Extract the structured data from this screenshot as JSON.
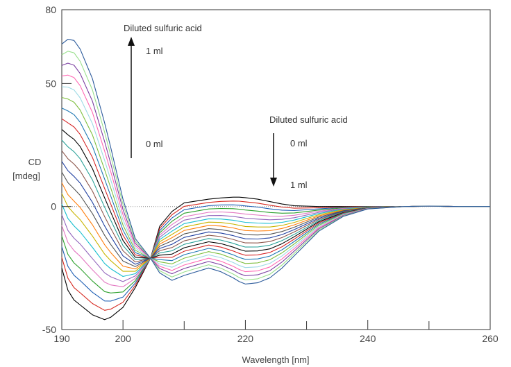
{
  "chart_data": {
    "type": "line",
    "xlabel": "Wavelength [nm]",
    "ylabel": [
      "CD",
      "[mdeg]"
    ],
    "xlim": [
      190,
      260
    ],
    "ylim": [
      -50,
      80
    ],
    "x_ticks": [
      190,
      200,
      220,
      240,
      260
    ],
    "y_ticks": [
      -50,
      0,
      50,
      80
    ],
    "zero_line": "dotted",
    "grid": false,
    "legend": "none",
    "series_count": 22,
    "series_colors": [
      "#000000",
      "#d6281f",
      "#1f5fb4",
      "#2ca02c",
      "#e377c2",
      "#9467bd",
      "#17becf",
      "#c8b400",
      "#ff7f0e",
      "#555555",
      "#1f3fa0",
      "#8c564b",
      "#2aa198",
      "#000000",
      "#d62728",
      "#1f77b4",
      "#7fbf3f",
      "#9edae5",
      "#ff69b4",
      "#7b3fa0",
      "#98df8a",
      "#2b5a9b"
    ],
    "endpoints": {
      "top_curve": {
        "x": [
          190,
          191,
          192,
          193,
          195,
          197,
          198,
          200,
          202,
          204.5,
          206,
          208,
          210,
          214,
          216,
          218,
          219,
          220,
          222,
          224,
          226,
          228,
          232,
          236,
          240,
          246,
          250,
          255,
          260
        ],
        "y": [
          66,
          68,
          67.5,
          64,
          52,
          34,
          24,
          3,
          -13,
          -21,
          -27,
          -30,
          -28,
          -25,
          -26.5,
          -29,
          -30.5,
          -31.5,
          -31,
          -29,
          -25,
          -20,
          -10,
          -4,
          -1,
          0,
          0.2,
          0,
          0
        ]
      },
      "bottom_curve": {
        "x": [
          190,
          191,
          192,
          193,
          195,
          197,
          198,
          200,
          202,
          204.5,
          206,
          208,
          210,
          214,
          216,
          218,
          219,
          220,
          222,
          224,
          226,
          228,
          232,
          236,
          240,
          246,
          250,
          255,
          260
        ],
        "y": [
          -25,
          -34,
          -38,
          -40,
          -44,
          -46,
          -45,
          -41,
          -33,
          -21,
          -8,
          -2,
          1.5,
          3,
          3.5,
          3.8,
          3.8,
          3.6,
          3,
          2,
          1,
          0.3,
          0,
          0,
          0,
          0,
          0.1,
          0,
          0
        ]
      }
    },
    "annotations": {
      "left_title": "Diluted sulfuric acid",
      "left_top": "1 ml",
      "left_bottom": "0 ml",
      "right_title": "Diluted sulfuric acid",
      "right_top": "0 ml",
      "right_bottom": "1 ml"
    }
  }
}
